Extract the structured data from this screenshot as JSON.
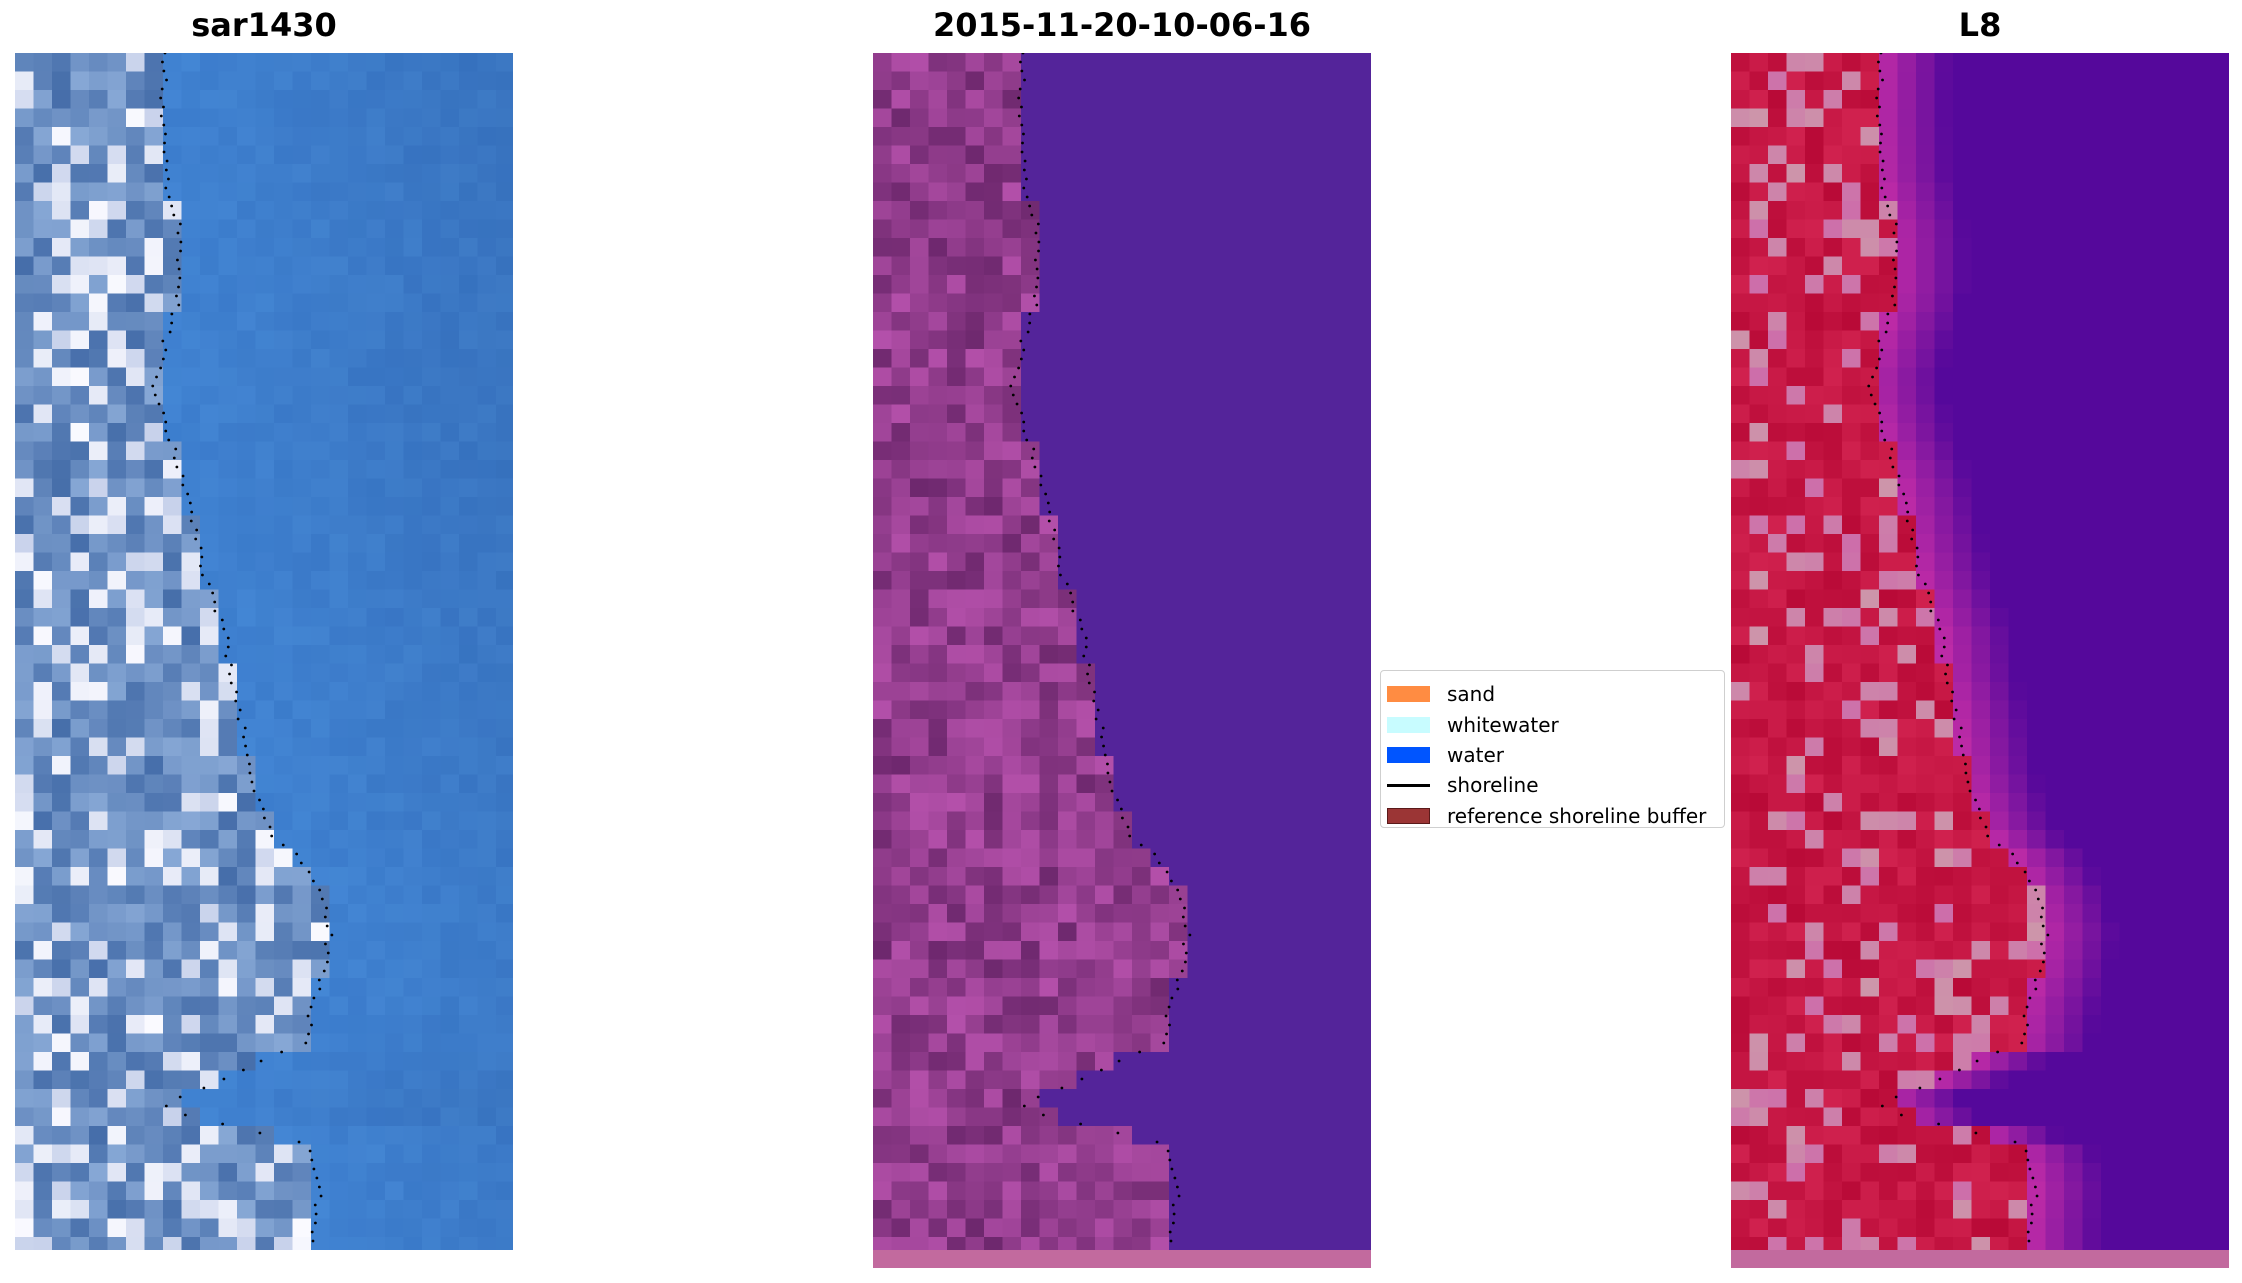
{
  "panels": [
    {
      "title": "sar1430",
      "style": "rgb"
    },
    {
      "title": "2015-11-20-10-06-16",
      "style": "classified"
    },
    {
      "title": "L8",
      "style": "index"
    }
  ],
  "legend": {
    "items": [
      {
        "label": "sand",
        "color": "#ff8c42",
        "kind": "patch"
      },
      {
        "label": "whitewater",
        "color": "#c8fcff",
        "kind": "patch"
      },
      {
        "label": "water",
        "color": "#0055ff",
        "kind": "patch"
      },
      {
        "label": "shoreline",
        "color": "#000000",
        "kind": "line"
      },
      {
        "label": "reference shoreline buffer",
        "color": "#9b3535",
        "kind": "patch"
      }
    ]
  },
  "colors": {
    "sea_rgb": "#3d74c4",
    "sea_classified": "#54249a",
    "land_classified": "#7a3480",
    "sea_index": "#55069c",
    "land_index": "#c8103e",
    "buffer_strip": "#c26a9e"
  }
}
